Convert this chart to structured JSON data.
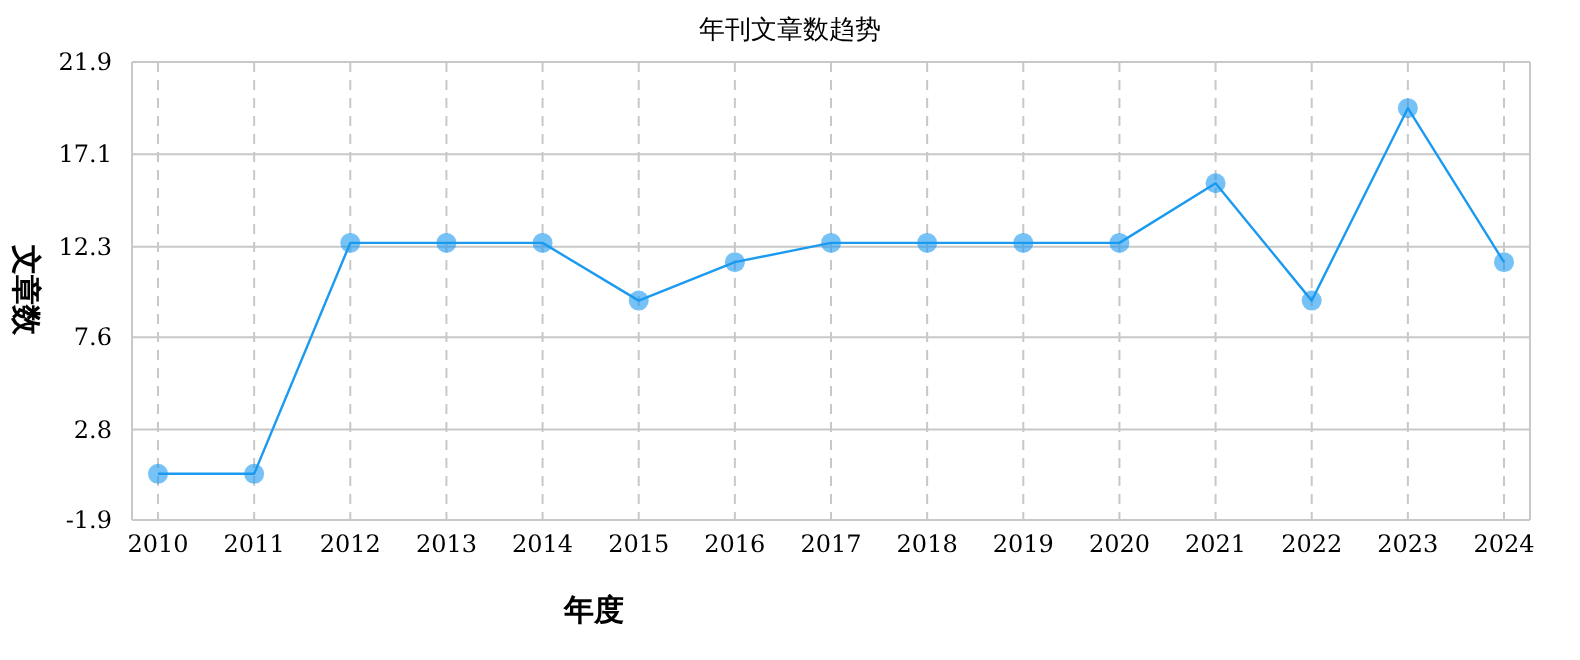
{
  "chart_data": {
    "type": "line",
    "title": "年刊文章数趋势",
    "xlabel": "年度",
    "ylabel": "文章数",
    "categories": [
      "2010",
      "2011",
      "2012",
      "2013",
      "2014",
      "2015",
      "2016",
      "2017",
      "2018",
      "2019",
      "2020",
      "2021",
      "2022",
      "2023",
      "2024"
    ],
    "series": [
      {
        "color": "#1a9af0",
        "values": [
          0.5,
          0.5,
          12.5,
          12.5,
          12.5,
          9.5,
          11.5,
          12.5,
          12.5,
          12.5,
          12.5,
          15.6,
          9.5,
          19.5,
          11.5
        ]
      }
    ],
    "ylim": [
      -1.9,
      21.9
    ],
    "yticks": [
      -1.9,
      2.8,
      7.6,
      12.3,
      17.1,
      21.9
    ],
    "grid": true,
    "marker": "circle"
  }
}
